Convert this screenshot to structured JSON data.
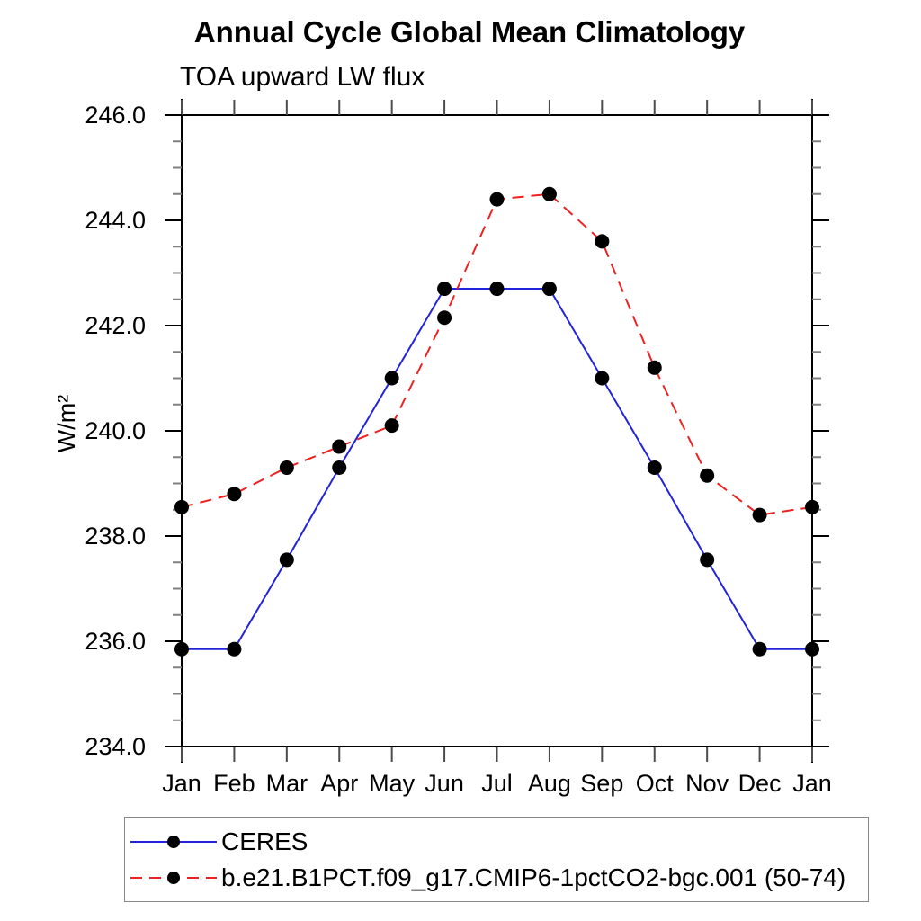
{
  "header": {
    "title": "Annual Cycle Global Mean Climatology",
    "subtitle": "TOA upward LW flux"
  },
  "chart_data": {
    "type": "line",
    "title": "Annual Cycle Global Mean Climatology",
    "subtitle": "TOA upward LW flux",
    "xlabel": "",
    "ylabel": "W/m²",
    "categories": [
      "Jan",
      "Feb",
      "Mar",
      "Apr",
      "May",
      "Jun",
      "Jul",
      "Aug",
      "Sep",
      "Oct",
      "Nov",
      "Dec",
      "Jan"
    ],
    "ylim": [
      234.0,
      246.0
    ],
    "ytick_interval": 2.0,
    "yminor_interval": 0.5,
    "ytick_label_decimals": 1,
    "grid": false,
    "legend_position": "bottom-left-box",
    "axis_color": "#000000",
    "minor_tick_color": "#808080",
    "month_tick_color": "#4d4d4d",
    "series": [
      {
        "name": "CERES",
        "color": "#2323dd",
        "style": "solid",
        "marker": "circle",
        "marker_color": "#000000",
        "values": [
          235.85,
          235.85,
          237.55,
          239.3,
          241.0,
          242.7,
          242.7,
          242.7,
          241.0,
          239.3,
          237.55,
          235.85,
          235.85
        ]
      },
      {
        "name": "b.e21.B1PCT.f09_g17.CMIP6-1pctCO2-bgc.001 (50-74)",
        "color": "#ee2222",
        "style": "dashed",
        "marker": "circle",
        "marker_color": "#000000",
        "values": [
          238.55,
          238.8,
          239.3,
          239.7,
          240.1,
          242.15,
          244.4,
          244.5,
          243.6,
          241.2,
          239.15,
          238.4,
          238.55
        ]
      }
    ]
  }
}
